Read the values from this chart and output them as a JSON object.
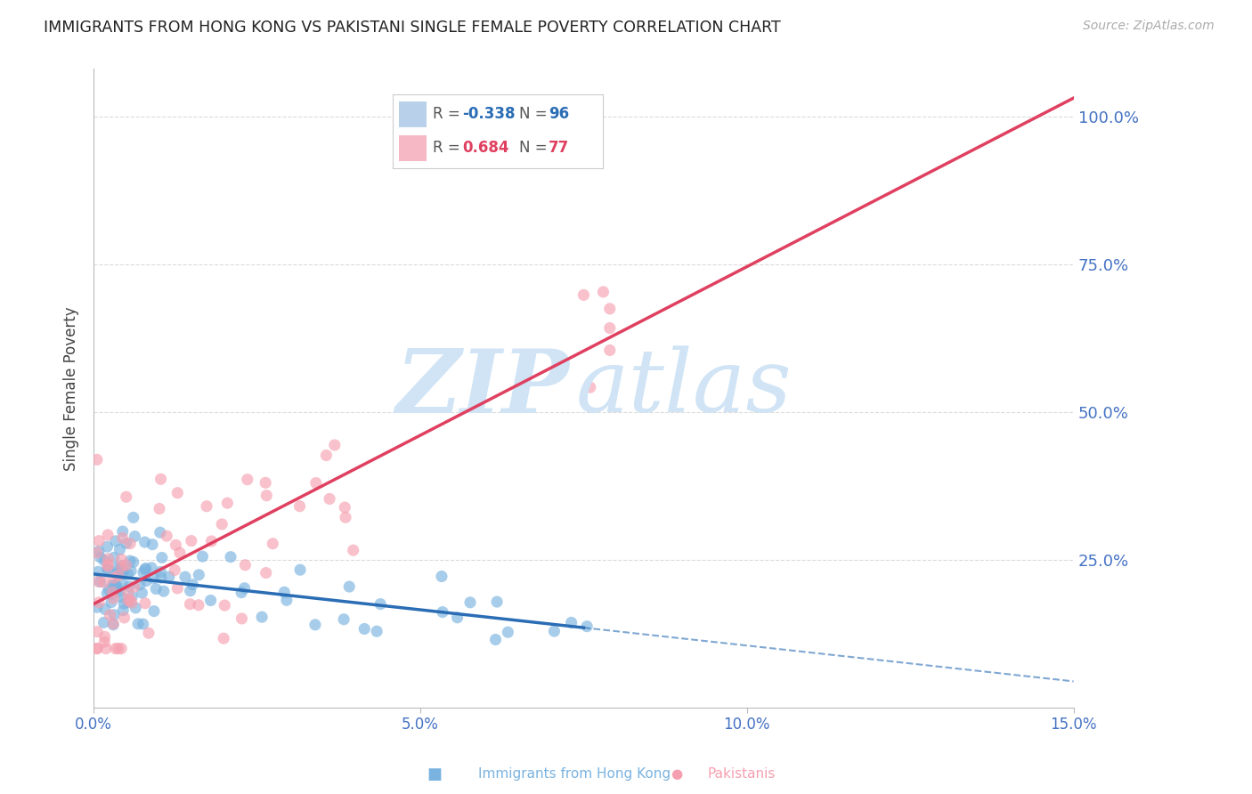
{
  "title": "IMMIGRANTS FROM HONG KONG VS PAKISTANI SINGLE FEMALE POVERTY CORRELATION CHART",
  "source": "Source: ZipAtlas.com",
  "ylabel": "Single Female Poverty",
  "xlabel_blue": "Immigrants from Hong Kong",
  "xlabel_pink": "Pakistanis",
  "r_blue": -0.338,
  "n_blue": 96,
  "r_pink": 0.684,
  "n_pink": 77,
  "xlim": [
    0.0,
    0.15
  ],
  "ylim": [
    0.0,
    1.05
  ],
  "ytick_vals": [
    0.0,
    0.25,
    0.5,
    0.75,
    1.0
  ],
  "ytick_labels_right": [
    "",
    "25.0%",
    "50.0%",
    "75.0%",
    "100.0%"
  ],
  "xtick_vals": [
    0.0,
    0.05,
    0.1,
    0.15
  ],
  "xtick_labels": [
    "0.0%",
    "5.0%",
    "10.0%",
    "15.0%"
  ],
  "color_blue": "#7ab3e0",
  "color_pink": "#f5a0b0",
  "trendline_blue": "#2a6db5",
  "trendline_pink": "#e04060",
  "axis_color": "#4472c4",
  "grid_color": "#cccccc",
  "background_color": "#ffffff",
  "legend_box_color_blue": "#b8d0ea",
  "legend_box_color_pink": "#f5b8c4",
  "watermark_color": "#d0e4f5"
}
